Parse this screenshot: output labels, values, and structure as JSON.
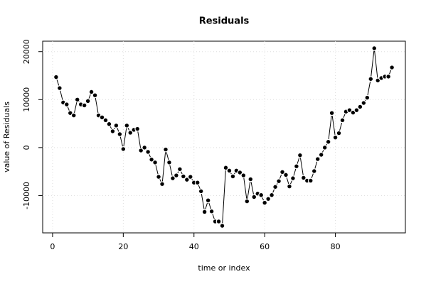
{
  "chart_data": {
    "type": "line",
    "title": "Residuals",
    "x_label": "time or index",
    "y_label": "value of Residuals",
    "x": [
      1,
      2,
      3,
      4,
      5,
      6,
      7,
      8,
      9,
      10,
      11,
      12,
      13,
      14,
      15,
      16,
      17,
      18,
      19,
      20,
      21,
      22,
      23,
      24,
      25,
      26,
      27,
      28,
      29,
      30,
      31,
      32,
      33,
      34,
      35,
      36,
      37,
      38,
      39,
      40,
      41,
      42,
      43,
      44,
      45,
      46,
      47,
      48,
      49,
      50,
      51,
      52,
      53,
      54,
      55,
      56,
      57,
      58,
      59,
      60,
      61,
      62,
      63,
      64,
      65,
      66,
      67,
      68,
      69,
      70,
      71,
      72,
      73,
      74,
      75,
      76,
      77,
      78,
      79,
      80,
      81,
      82,
      83,
      84,
      85,
      86,
      87,
      88,
      89,
      90,
      91,
      92,
      93,
      94,
      95,
      96
    ],
    "values": [
      14700,
      12400,
      9400,
      9000,
      7200,
      6700,
      10000,
      9000,
      8800,
      9700,
      11600,
      10900,
      6700,
      6300,
      5700,
      4900,
      3400,
      4600,
      2800,
      -300,
      4600,
      3100,
      3700,
      3900,
      -600,
      0,
      -900,
      -2500,
      -3100,
      -6100,
      -7600,
      -400,
      -3100,
      -6400,
      -5800,
      -4500,
      -6000,
      -6700,
      -6100,
      -7300,
      -7300,
      -9100,
      -13400,
      -11000,
      -13300,
      -15400,
      -15400,
      -16300,
      -4200,
      -4800,
      -6000,
      -4800,
      -5200,
      -5800,
      -11200,
      -6600,
      -10300,
      -9600,
      -9900,
      -11500,
      -10700,
      -9900,
      -8200,
      -7000,
      -5100,
      -5700,
      -8100,
      -6400,
      -3900,
      -1600,
      -6300,
      -6900,
      -6900,
      -4900,
      -2400,
      -1500,
      0,
      1200,
      7200,
      2100,
      3000,
      5700,
      7500,
      7800,
      7300,
      7800,
      8500,
      9300,
      10400,
      14300,
      20700,
      14000,
      14500,
      14800,
      14800,
      16700
    ],
    "color": "#000000",
    "xlim": [
      -2.8,
      99.8
    ],
    "xticks": [
      0,
      20,
      40,
      60,
      80
    ],
    "ylim": [
      -17780,
      22180
    ],
    "yticks": [
      -10000,
      0,
      10000,
      20000
    ],
    "grid": true
  }
}
